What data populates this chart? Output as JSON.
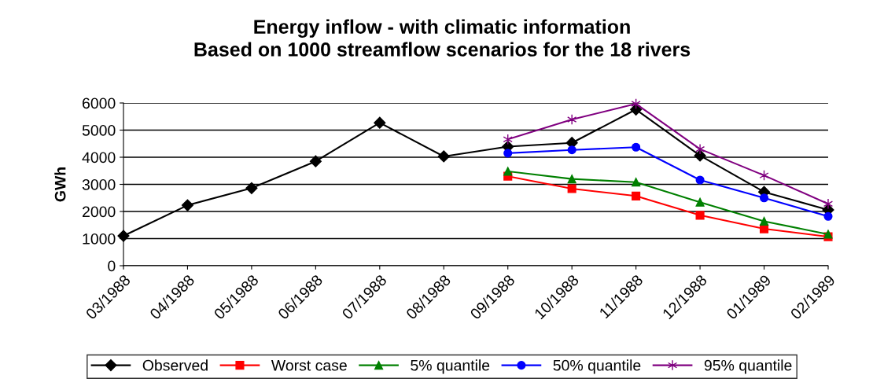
{
  "chart_data": {
    "type": "line",
    "title": "Energy inflow - with climatic information\nBased on 1000 streamflow scenarios for the 18 rivers",
    "ylabel": "GWh",
    "categories": [
      "03/1988",
      "04/1988",
      "05/1988",
      "06/1988",
      "07/1988",
      "08/1988",
      "09/1988",
      "10/1988",
      "11/1988",
      "12/1988",
      "01/1989",
      "02/1989"
    ],
    "series": [
      {
        "name": "Observed",
        "color": "#000000",
        "marker": "diamond",
        "values": [
          1100,
          2230,
          2860,
          3850,
          5270,
          4030,
          4390,
          4530,
          5760,
          4060,
          2720,
          2060
        ]
      },
      {
        "name": "Worst case",
        "color": "#ff0000",
        "marker": "square",
        "values": [
          null,
          null,
          null,
          null,
          null,
          null,
          3300,
          2840,
          2570,
          1860,
          1360,
          1070
        ]
      },
      {
        "name": "5% quantile",
        "color": "#008000",
        "marker": "triangle",
        "values": [
          null,
          null,
          null,
          null,
          null,
          null,
          3480,
          3200,
          3080,
          2340,
          1640,
          1160
        ]
      },
      {
        "name": "50% quantile",
        "color": "#0000ff",
        "marker": "circle",
        "values": [
          null,
          null,
          null,
          null,
          null,
          null,
          4150,
          4270,
          4370,
          3160,
          2500,
          1820
        ]
      },
      {
        "name": "95% quantile",
        "color": "#800080",
        "marker": "cross",
        "values": [
          null,
          null,
          null,
          null,
          null,
          null,
          4660,
          5390,
          5970,
          4300,
          3330,
          2280
        ]
      }
    ],
    "ylim": [
      0,
      6000
    ],
    "yticks": [
      0,
      1000,
      2000,
      3000,
      4000,
      5000,
      6000
    ],
    "grid": "y",
    "legend": "bottom",
    "line_style": "solid"
  }
}
